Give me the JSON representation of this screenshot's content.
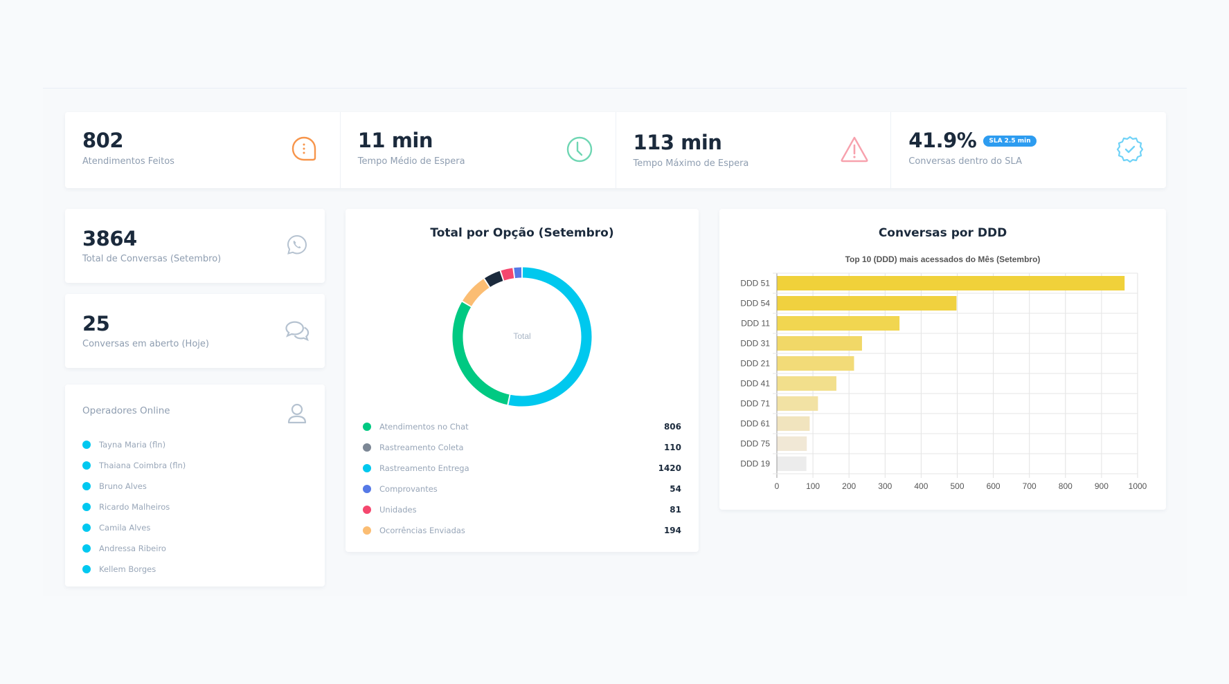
{
  "kpis": [
    {
      "value": "802",
      "label": "Atendimentos Feitos",
      "icon": "chat-bubble-dots-icon",
      "color": "#f7954b"
    },
    {
      "value": "11 min",
      "label": "Tempo Médio de Espera",
      "icon": "clock-icon",
      "color": "#6fd6b3"
    },
    {
      "value": "113 min",
      "label": "Tempo Máximo de Espera",
      "icon": "warning-triangle-icon",
      "color": "#f7a1ad"
    },
    {
      "value": "41.9%",
      "badge": "SLA 2.5 min",
      "label": "Conversas dentro do SLA",
      "icon": "verified-badge-icon",
      "color": "#6fd2f7"
    }
  ],
  "total_conversas": {
    "value": "3864",
    "label": "Total de Conversas (Setembro)",
    "icon": "whatsapp-icon"
  },
  "conversas_abertas": {
    "value": "25",
    "label": "Conversas em aberto (Hoje)",
    "icon": "chat-bubbles-icon"
  },
  "operadores": {
    "title": "Operadores Online",
    "icon": "user-icon",
    "status_color": "#00c8f0",
    "items": [
      "Tayna Maria (fln)",
      "Thaiana Coimbra (fln)",
      "Bruno Alves",
      "Ricardo Malheiros",
      "Camila Alves",
      "Andressa Ribeiro",
      "Kellem Borges"
    ]
  },
  "donut": {
    "title": "Total por Opção (Setembro)",
    "center_label": "Total"
  },
  "ddd": {
    "title": "Conversas por DDD"
  },
  "chart_data": [
    {
      "type": "pie",
      "variant": "doughnut",
      "title": "Total por Opção (Setembro)",
      "center_label": "Total",
      "legend_position": "bottom",
      "categories": [
        "Atendimentos no Chat",
        "Rastreamento Coleta",
        "Rastreamento Entrega",
        "Comprovantes",
        "Unidades",
        "Ocorrências Enviadas"
      ],
      "values": [
        806,
        110,
        1420,
        54,
        81,
        194
      ],
      "legend_colors": [
        "#00c982",
        "#7c8795",
        "#00c8ee",
        "#5579e6",
        "#f5476e",
        "#fbbd73"
      ],
      "slice_colors": [
        "#00c982",
        "#1b2a3c",
        "#00c8ee",
        "#5579e6",
        "#f5476e",
        "#fbbd73"
      ],
      "draw_order": [
        2,
        0,
        5,
        1,
        4,
        3
      ]
    },
    {
      "type": "bar",
      "orientation": "horizontal",
      "title": "Top 10 (DDD) mais acessados do Mês (Setembro)",
      "categories": [
        "DDD 51",
        "DDD 54",
        "DDD 11",
        "DDD 31",
        "DDD 21",
        "DDD 41",
        "DDD 71",
        "DDD 61",
        "DDD 75",
        "DDD 19"
      ],
      "values": [
        963,
        497,
        339,
        235,
        213,
        164,
        113,
        90,
        82,
        81
      ],
      "colors": [
        "#f0d13a",
        "#f0d13f",
        "#f1d650",
        "#f1d867",
        "#f2db78",
        "#f2df8c",
        "#f2e2a4",
        "#f1e4be",
        "#f1e8d6",
        "#ececec"
      ],
      "xlim": [
        0,
        1000
      ],
      "xticks": [
        0,
        100,
        200,
        300,
        400,
        500,
        600,
        700,
        800,
        900,
        1000
      ],
      "grid": true,
      "xlabel": "",
      "ylabel": ""
    }
  ]
}
